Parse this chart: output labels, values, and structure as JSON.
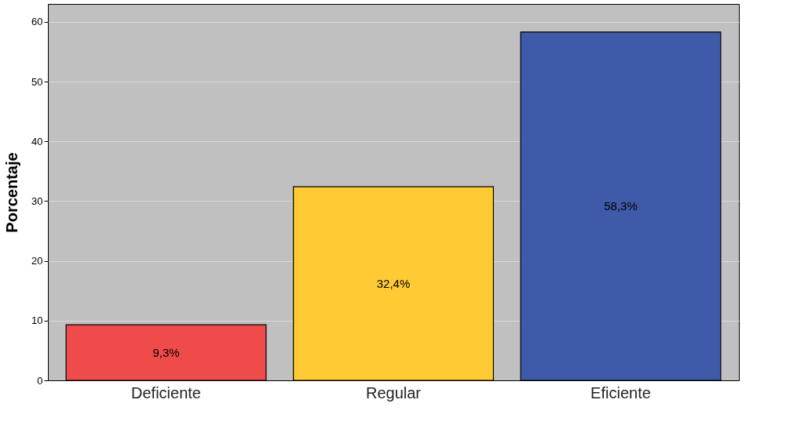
{
  "chart_data": {
    "type": "bar",
    "ylabel": "Porcentaje",
    "categories": [
      "Deficiente",
      "Regular",
      "Eficiente"
    ],
    "values": [
      9.3,
      32.4,
      58.3
    ],
    "colors": [
      "#ef4b4b",
      "#ffca33",
      "#3f5aa8"
    ],
    "value_labels": [
      "9,3%",
      "32,4%",
      "58,3%"
    ],
    "ylim": [
      0,
      63
    ],
    "yticks": [
      0,
      10,
      20,
      30,
      40,
      50,
      60
    ],
    "grid": "y"
  }
}
